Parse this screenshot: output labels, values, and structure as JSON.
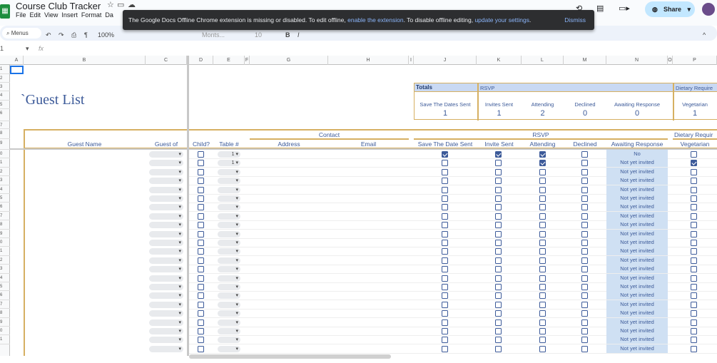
{
  "app": {
    "title": "Course Club Tracker",
    "menus": [
      "File",
      "Edit",
      "View",
      "Insert",
      "Format",
      "Da"
    ]
  },
  "toolbar": {
    "search": "Menus",
    "zoom": "100%",
    "font": "Monts...",
    "font_size": "10"
  },
  "toast": {
    "text1": "The Google Docs Offline Chrome extension is missing or disabled. To edit offline, ",
    "link1": "enable the extension",
    "text2": ". To disable offline editing, ",
    "link2": "update your settings",
    "text3": ".",
    "dismiss": "Dismiss"
  },
  "share": {
    "label": "Share"
  },
  "formula_bar": {
    "cell_ref": "1",
    "fx": "fx"
  },
  "columns": [
    "A",
    "B",
    "C",
    "D",
    "E",
    "F",
    "G",
    "H",
    "I",
    "J",
    "K",
    "L",
    "M",
    "N",
    "O",
    "P"
  ],
  "rows": [
    "1",
    "2",
    "3",
    "4",
    "5",
    "6",
    "7",
    "8",
    "9",
    "0",
    "1",
    "2",
    "3",
    "4",
    "5",
    "6",
    "7",
    "8",
    "9",
    "0",
    "1",
    "2",
    "3",
    "4",
    "5",
    "6",
    "7",
    "8",
    "9",
    "0",
    "1"
  ],
  "sheet": {
    "title": "Guest List",
    "tick": "`"
  },
  "totals": {
    "label": "Totals",
    "rsvp": "RSVP",
    "dietary": "Dietary Require",
    "items": [
      {
        "label": "Save The Dates Sent",
        "value": "1"
      },
      {
        "label": "Invites Sent",
        "value": "1"
      },
      {
        "label": "Attending",
        "value": "2"
      },
      {
        "label": "Declined",
        "value": "0"
      },
      {
        "label": "Awaiting Response",
        "value": "0"
      },
      {
        "label": "Vegetarian",
        "value": "1"
      }
    ]
  },
  "headers": {
    "contact": "Contact",
    "rsvp": "RSVP",
    "dietary": "Dietary Requir",
    "guest_name": "Guest Name",
    "guest_of": "Guest of",
    "child": "Child?",
    "table": "Table #",
    "address": "Address",
    "email": "Email",
    "save": "Save The Date Sent",
    "invite": "Invite Sent",
    "attending": "Attending",
    "declined": "Declined",
    "awaiting": "Awaiting Response",
    "vegetarian": "Vegetarian"
  },
  "guests": [
    {
      "table": "1",
      "save": true,
      "invite": true,
      "attending": true,
      "declined": false,
      "awaiting": "No",
      "veg": false
    },
    {
      "table": "1",
      "save": false,
      "invite": false,
      "attending": true,
      "declined": false,
      "awaiting": "Not yet invited",
      "veg": true
    }
  ],
  "default_awaiting": "Not yet invited",
  "empty_rows": 21,
  "colors": {
    "accent": "#3c5a99",
    "gold": "#d6b062",
    "header_fill": "#c9d9f3",
    "awaiting_fill": "#cfe0f3"
  }
}
